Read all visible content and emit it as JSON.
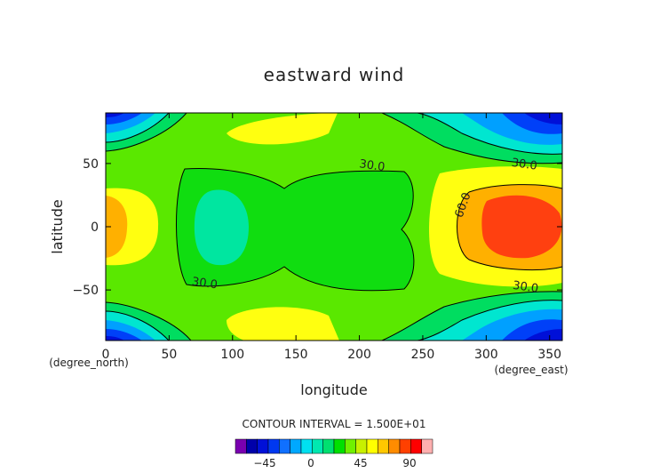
{
  "chart_data": {
    "type": "contour",
    "title": "eastward wind",
    "xlabel": "longitude",
    "ylabel": "latitude",
    "x_unit": "(degree_east)",
    "y_unit": "(degree_north)",
    "xlim": [
      0,
      360
    ],
    "ylim": [
      -90,
      90
    ],
    "x_ticks": [
      0,
      50,
      100,
      150,
      200,
      250,
      300,
      350
    ],
    "y_ticks": [
      -50,
      0,
      50
    ],
    "contour_interval_text": "CONTOUR INTERVAL = 1.500E+01",
    "contour_labels": [
      {
        "text": "30.0",
        "lon": 210,
        "lat": 48
      },
      {
        "text": "30.0",
        "lon": 330,
        "lat": 49
      },
      {
        "text": "60.0",
        "lon": 282,
        "lat": 17
      },
      {
        "text": "30.0",
        "lon": 78,
        "lat": -45
      },
      {
        "text": "30.0",
        "lon": 331,
        "lat": -48
      }
    ],
    "colorbar_ticks": [
      "-45",
      "0",
      "45",
      "90"
    ],
    "colorbar_colors": [
      "#7a00b0",
      "#0000aa",
      "#0010d8",
      "#0038f0",
      "#1070ff",
      "#00a8ff",
      "#00e0f0",
      "#00e8b0",
      "#00e070",
      "#00e000",
      "#70f000",
      "#c8f000",
      "#ffff00",
      "#ffc800",
      "#ff8c00",
      "#ff4000",
      "#ff0000",
      "#ffb0b0"
    ],
    "colors": {
      "band_-45": "#0010d8",
      "band_-30": "#0040f8",
      "band_-15": "#00a0ff",
      "band_0": "#00e6d0",
      "band_15": "#00dd60",
      "band_30": "#10e000",
      "band_45": "#5ae800",
      "band_60": "#ffff10",
      "band_75": "#ffb000",
      "band_90": "#ff4010"
    }
  }
}
